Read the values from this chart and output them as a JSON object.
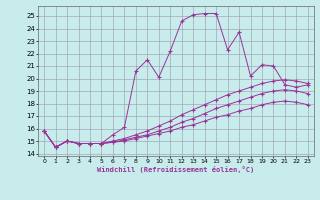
{
  "xlabel": "Windchill (Refroidissement éolien,°C)",
  "xlim": [
    -0.5,
    23.5
  ],
  "ylim": [
    13.8,
    25.8
  ],
  "yticks": [
    14,
    15,
    16,
    17,
    18,
    19,
    20,
    21,
    22,
    23,
    24,
    25
  ],
  "xticks": [
    0,
    1,
    2,
    3,
    4,
    5,
    6,
    7,
    8,
    9,
    10,
    11,
    12,
    13,
    14,
    15,
    16,
    17,
    18,
    19,
    20,
    21,
    22,
    23
  ],
  "bg_color": "#c8ecec",
  "grid_color": "#9999aa",
  "line_color": "#993399",
  "lines": [
    {
      "x": [
        0,
        1,
        2,
        3,
        4,
        5,
        6,
        7,
        8,
        9,
        10,
        11,
        12,
        13,
        14,
        15,
        16,
        17,
        18,
        19,
        20,
        21,
        22,
        23
      ],
      "y": [
        15.8,
        14.5,
        15.0,
        14.8,
        14.8,
        14.8,
        15.5,
        16.1,
        20.6,
        21.5,
        20.1,
        22.2,
        24.6,
        25.1,
        25.2,
        25.2,
        22.3,
        23.7,
        20.2,
        21.1,
        21.0,
        19.5,
        19.3,
        19.5
      ]
    },
    {
      "x": [
        0,
        1,
        2,
        3,
        4,
        5,
        6,
        7,
        8,
        9,
        10,
        11,
        12,
        13,
        14,
        15,
        16,
        17,
        18,
        19,
        20,
        21,
        22,
        23
      ],
      "y": [
        15.8,
        14.5,
        15.0,
        14.8,
        14.8,
        14.8,
        15.0,
        15.2,
        15.5,
        15.8,
        16.2,
        16.6,
        17.1,
        17.5,
        17.9,
        18.3,
        18.7,
        19.0,
        19.3,
        19.6,
        19.8,
        19.9,
        19.8,
        19.6
      ]
    },
    {
      "x": [
        0,
        1,
        2,
        3,
        4,
        5,
        6,
        7,
        8,
        9,
        10,
        11,
        12,
        13,
        14,
        15,
        16,
        17,
        18,
        19,
        20,
        21,
        22,
        23
      ],
      "y": [
        15.8,
        14.5,
        15.0,
        14.8,
        14.8,
        14.8,
        14.9,
        15.1,
        15.3,
        15.5,
        15.8,
        16.1,
        16.5,
        16.8,
        17.2,
        17.6,
        17.9,
        18.2,
        18.5,
        18.8,
        19.0,
        19.1,
        19.0,
        18.8
      ]
    },
    {
      "x": [
        0,
        1,
        2,
        3,
        4,
        5,
        6,
        7,
        8,
        9,
        10,
        11,
        12,
        13,
        14,
        15,
        16,
        17,
        18,
        19,
        20,
        21,
        22,
        23
      ],
      "y": [
        15.8,
        14.5,
        15.0,
        14.8,
        14.8,
        14.8,
        14.9,
        15.0,
        15.2,
        15.4,
        15.6,
        15.8,
        16.1,
        16.3,
        16.6,
        16.9,
        17.1,
        17.4,
        17.6,
        17.9,
        18.1,
        18.2,
        18.1,
        17.9
      ]
    }
  ]
}
